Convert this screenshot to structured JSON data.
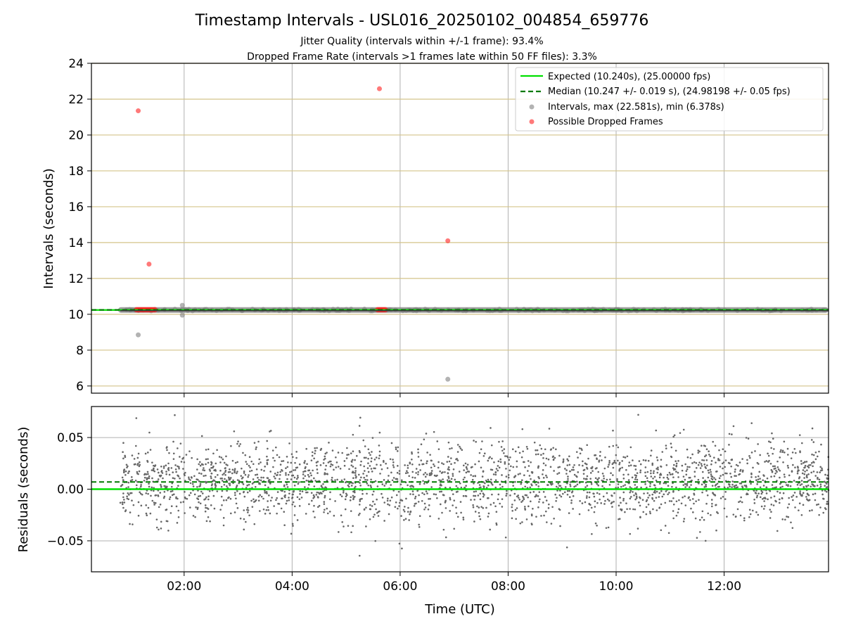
{
  "chart_data": [
    {
      "type": "scatter",
      "title": "Timestamp Intervals - USL016_20250102_004854_659776",
      "subtitle_lines": [
        "Jitter Quality (intervals within +/-1 frame): 93.4%",
        "Dropped Frame Rate (intervals >1 frames late within 50 FF files): 3.3%"
      ],
      "xlabel": "",
      "ylabel": "Intervals (seconds)",
      "xlim": [
        "00:17",
        "13:56"
      ],
      "ylim": [
        5.6,
        24
      ],
      "yticks": [
        "6",
        "8",
        "10",
        "12",
        "14",
        "16",
        "18",
        "20",
        "22",
        "24"
      ],
      "grid": true,
      "legend_position": "top-right",
      "expected_line": {
        "label": "Expected (10.240s), (25.00000 fps)",
        "value": 10.24,
        "color": "#00e000"
      },
      "median_line": {
        "label": "Median (10.247 +/- 0.019 s), (24.98198 +/- 0.05 fps)",
        "value": 10.247,
        "color": "#007a00"
      },
      "series": [
        {
          "name": "Intervals, max (22.581s), min (6.378s)",
          "color": "#808080",
          "band": {
            "x_start": "00:49",
            "x_end": "13:56",
            "value": 10.24
          },
          "outliers": [
            {
              "x": "01:09",
              "y": 8.85
            },
            {
              "x": "01:58",
              "y": 10.5
            },
            {
              "x": "01:58",
              "y": 9.95
            },
            {
              "x": "06:53",
              "y": 6.378
            }
          ]
        },
        {
          "name": "Possible Dropped Frames",
          "color": "#ff2020",
          "points": [
            {
              "x": "01:09",
              "y": 21.35
            },
            {
              "x": "01:21",
              "y": 12.8
            },
            {
              "x": "05:37",
              "y": 22.581
            },
            {
              "x": "06:53",
              "y": 14.1
            }
          ],
          "clusters": [
            {
              "x_start": "01:07",
              "x_end": "01:28",
              "y": 10.25
            },
            {
              "x_start": "05:35",
              "x_end": "05:44",
              "y": 10.25
            }
          ]
        }
      ]
    },
    {
      "type": "scatter",
      "xlabel": "Time (UTC)",
      "ylabel": "Residuals (seconds)",
      "xlim": [
        "00:17",
        "13:56"
      ],
      "ylim": [
        -0.08,
        0.08
      ],
      "yticks": [
        "−0.05",
        "0.00",
        "0.05"
      ],
      "xticks": [
        "02:00",
        "04:00",
        "06:00",
        "08:00",
        "10:00",
        "12:00"
      ],
      "grid": true,
      "expected_line": {
        "value": 0.0,
        "color": "#00e000"
      },
      "median_line": {
        "value": 0.007,
        "color": "#007a00"
      },
      "series": [
        {
          "name": "",
          "color": "#666666",
          "x_range": [
            "00:49",
            "13:56"
          ],
          "y_spread": {
            "center": 0.007,
            "typical_range": [
              -0.04,
              0.055
            ],
            "extremes": [
              -0.065,
              0.072
            ]
          }
        }
      ]
    }
  ]
}
